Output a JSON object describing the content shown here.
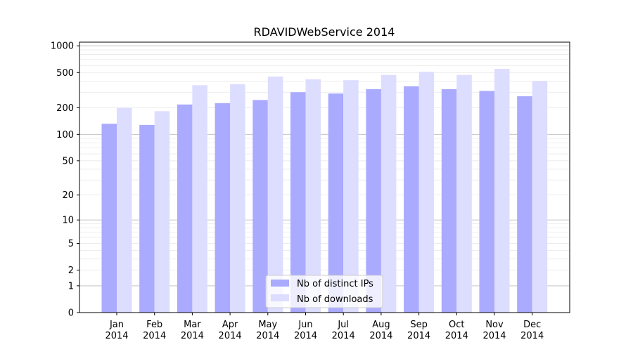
{
  "chart_data": {
    "type": "bar",
    "title": "RDAVIDWebService 2014",
    "xlabel": "",
    "ylabel": "",
    "y_scale": "log1p",
    "ylim": [
      0,
      1100
    ],
    "y_ticks": [
      0,
      1,
      2,
      5,
      10,
      20,
      50,
      100,
      200,
      500,
      1000
    ],
    "y_tick_labels": [
      "0",
      "1",
      "2",
      "5",
      "10",
      "20",
      "50",
      "100",
      "200",
      "500",
      "1000"
    ],
    "grid": true,
    "legend_position": "bottom-center",
    "categories": [
      [
        "Jan",
        "2014"
      ],
      [
        "Feb",
        "2014"
      ],
      [
        "Mar",
        "2014"
      ],
      [
        "Apr",
        "2014"
      ],
      [
        "May",
        "2014"
      ],
      [
        "Jun",
        "2014"
      ],
      [
        "Jul",
        "2014"
      ],
      [
        "Aug",
        "2014"
      ],
      [
        "Sep",
        "2014"
      ],
      [
        "Oct",
        "2014"
      ],
      [
        "Nov",
        "2014"
      ],
      [
        "Dec",
        "2014"
      ]
    ],
    "series": [
      {
        "name": "Nb of distinct IPs",
        "color": "#aaaaff",
        "values": [
          132,
          128,
          218,
          226,
          245,
          300,
          290,
          325,
          350,
          325,
          310,
          270
        ]
      },
      {
        "name": "Nb of downloads",
        "color": "#ddddff",
        "values": [
          200,
          183,
          360,
          370,
          450,
          420,
          410,
          470,
          510,
          470,
          550,
          400
        ]
      }
    ]
  }
}
